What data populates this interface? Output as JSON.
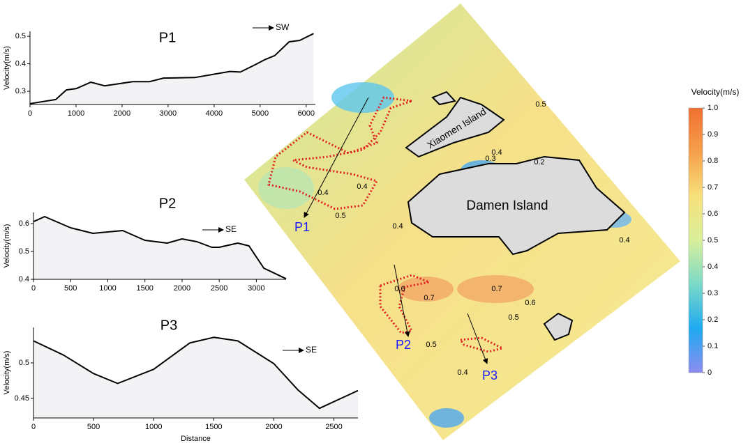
{
  "chart_data": [
    {
      "type": "area",
      "title": "P1",
      "annotation": "SW",
      "ylabel": "Velocity(m/s)",
      "color": "#000000",
      "fill": "#f3f3f5",
      "x": [
        0,
        560,
        790,
        1010,
        1320,
        1620,
        2230,
        2600,
        2900,
        3580,
        4340,
        4570,
        4870,
        5100,
        5320,
        5630,
        5860,
        6160
      ],
      "values": [
        0.255,
        0.27,
        0.305,
        0.31,
        0.333,
        0.32,
        0.335,
        0.335,
        0.348,
        0.35,
        0.372,
        0.37,
        0.395,
        0.415,
        0.43,
        0.48,
        0.485,
        0.51
      ],
      "xlim": [
        0,
        6200
      ],
      "ylim": [
        0.252,
        0.518
      ],
      "xticks": [
        0,
        1000,
        2000,
        3000,
        4000,
        5000,
        6000
      ],
      "yticks": [
        0.3,
        0.4,
        0.5
      ]
    },
    {
      "type": "area",
      "title": "P2",
      "annotation": "SE",
      "ylabel": "Velocity(m/s)",
      "color": "#000000",
      "fill": "#f3f3f5",
      "x": [
        0,
        150,
        500,
        800,
        1200,
        1500,
        1800,
        2000,
        2200,
        2400,
        2500,
        2750,
        2900,
        3100,
        3400
      ],
      "values": [
        0.607,
        0.625,
        0.585,
        0.565,
        0.575,
        0.54,
        0.53,
        0.545,
        0.535,
        0.515,
        0.515,
        0.53,
        0.52,
        0.44,
        0.402
      ],
      "xlim": [
        0,
        3400
      ],
      "ylim": [
        0.4,
        0.64
      ],
      "xticks": [
        0,
        500,
        1000,
        1500,
        2000,
        2500,
        3000
      ],
      "yticks": [
        0.4,
        0.5,
        0.6
      ]
    },
    {
      "type": "area",
      "title": "P3",
      "annotation": "SE",
      "ylabel": "Velocity(m/s)",
      "xlabel": "Distance",
      "color": "#000000",
      "fill": "#f3f3f5",
      "x": [
        0,
        250,
        500,
        700,
        1000,
        1300,
        1500,
        1700,
        2000,
        2200,
        2380,
        2700
      ],
      "values": [
        0.531,
        0.511,
        0.485,
        0.471,
        0.491,
        0.528,
        0.536,
        0.531,
        0.499,
        0.462,
        0.436,
        0.461
      ],
      "xlim": [
        0,
        2700
      ],
      "ylim": [
        0.4225,
        0.55
      ],
      "xticks": [
        0,
        500,
        1000,
        1500,
        2000,
        2500
      ],
      "yticks": [
        0.45,
        0.5
      ]
    }
  ],
  "map": {
    "islands": [
      "Xiaomen Island",
      "Damen Island"
    ],
    "profiles": [
      "P1",
      "P2",
      "P3"
    ],
    "contour_labels": [
      0.5,
      0.4,
      0.3,
      0.2,
      0.4,
      0.4,
      0.5,
      0.4,
      0.4,
      0.6,
      0.7,
      0.7,
      0.6,
      0.5,
      0.5,
      0.4
    ],
    "colorbar": {
      "title": "Velocity(m/s)",
      "lim": [
        0,
        1
      ],
      "ticks": [
        0,
        0.1,
        0.2,
        0.3,
        0.4,
        0.5,
        0.6,
        0.7,
        0.8,
        0.9,
        {
          "value": 1,
          "label": "1.0"
        }
      ],
      "colors": [
        "#8c8cf0",
        "#1eaaf0",
        "#7ad9c8",
        "#d8ef9a",
        "#f7e07a",
        "#f6a04c",
        "#f07030"
      ]
    }
  }
}
